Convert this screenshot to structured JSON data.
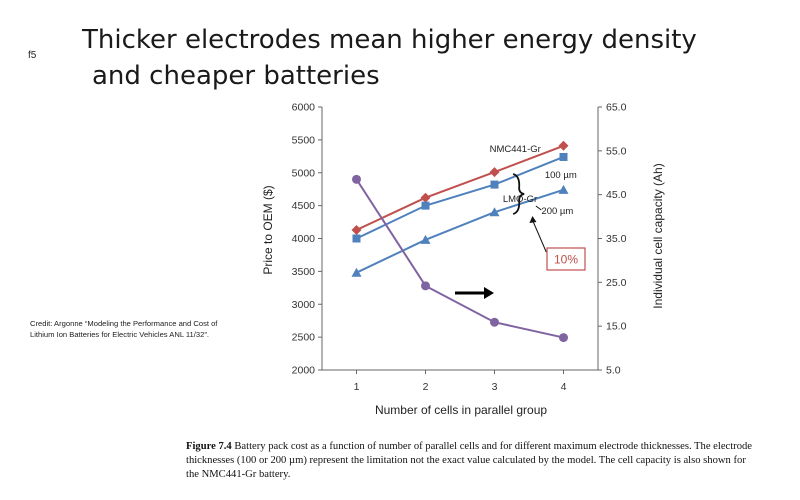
{
  "slide": {
    "tag": "f5",
    "title_line1": "Thicker electrodes mean higher energy density",
    "title_line2": "and cheaper batteries",
    "credit": "Credit: Argonne “Modeling the Performance and Cost of Lithium Ion Batteries for Electric Vehicles ANL 11/32”."
  },
  "caption": {
    "label": "Figure 7.4",
    "text": " Battery pack cost as a function of number of parallel cells and for different maximum electrode thicknesses. The electrode thicknesses (100 or 200 µm) represent the limitation not the exact value calculated by the model. The cell capacity is also shown for the NMC441-Gr battery."
  },
  "chart_data": {
    "type": "line",
    "x": [
      1,
      2,
      3,
      4
    ],
    "xlabel": "Number of cells in parallel group",
    "ylabel": "Price to OEM ($)",
    "y2label": "Individual cell capacity (Ah)",
    "ylim": [
      2000,
      6000
    ],
    "yticks": [
      2000,
      2500,
      3000,
      3500,
      4000,
      4500,
      5000,
      5500,
      6000
    ],
    "y2lim": [
      5.0,
      65.0
    ],
    "y2ticks": [
      "5.0",
      "15.0",
      "25.0",
      "35.0",
      "45.0",
      "55.0",
      "65.0"
    ],
    "xticks": [
      "1",
      "2",
      "3",
      "4"
    ],
    "series": [
      {
        "name": "NMC441-Gr 100 µm",
        "axis": "left",
        "color": "#c0504d",
        "marker": "diamond",
        "values": [
          4130,
          4620,
          5010,
          5410
        ]
      },
      {
        "name": "LMO-Gr 100 µm",
        "axis": "left",
        "color": "#4f81bd",
        "marker": "square",
        "values": [
          4000,
          4500,
          4820,
          5240
        ]
      },
      {
        "name": "LMO-Gr 200 µm",
        "axis": "left",
        "color": "#4f81bd",
        "marker": "triangle",
        "values": [
          3480,
          3980,
          4400,
          4740
        ]
      },
      {
        "name": "Cell capacity",
        "axis": "right",
        "color": "#8064a2",
        "marker": "circle",
        "values": [
          48.5,
          24.2,
          15.9,
          12.4
        ]
      }
    ],
    "annotations": {
      "nmc": "NMC441-Gr",
      "lmo": "LMO-Gr",
      "t100": "100 µm",
      "t200": "200 µm",
      "pct": "10%"
    }
  }
}
